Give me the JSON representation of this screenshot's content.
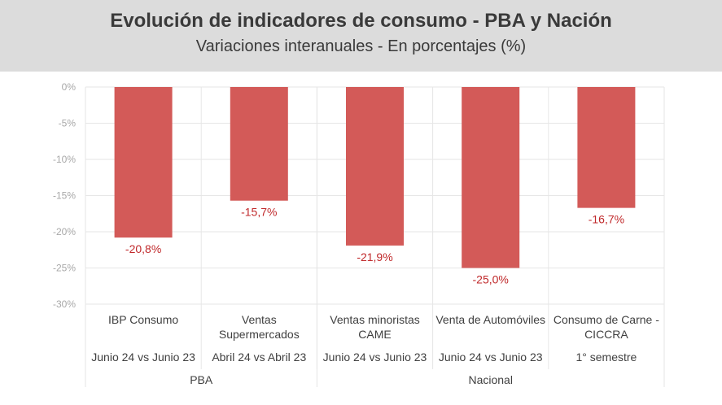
{
  "header": {
    "title": "Evolución de indicadores de consumo - PBA y Nación",
    "subtitle": "Variaciones interanuales - En porcentajes (%)"
  },
  "colors": {
    "bar": "#d35a58",
    "label": "#c0292b",
    "header_bg": "#dcdcdc"
  },
  "chart_data": {
    "type": "bar",
    "title": "Evolución de indicadores de consumo - PBA y Nación",
    "subtitle": "Variaciones interanuales - En porcentajes (%)",
    "categories": [
      [
        "IBP Consumo"
      ],
      [
        "Ventas",
        "Supermercados"
      ],
      [
        "Ventas minoristas",
        "CAME"
      ],
      [
        "Venta de Automóviles"
      ],
      [
        "Consumo de Carne -",
        "CICCRA"
      ]
    ],
    "periods": [
      "Junio 24 vs Junio 23",
      "Abril 24 vs Abril 23",
      "Junio 24 vs Junio 23",
      "Junio 24 vs Junio 23",
      "1° semestre"
    ],
    "groups": [
      {
        "name": "PBA",
        "count": 2
      },
      {
        "name": "Nacional",
        "count": 3
      }
    ],
    "values": [
      -20.8,
      -15.7,
      -21.9,
      -25.0,
      -16.7
    ],
    "data_labels": [
      "-20,8%",
      "-15,7%",
      "-21,9%",
      "-25,0%",
      "-16,7%"
    ],
    "yticks": [
      "0%",
      "-5%",
      "-10%",
      "-15%",
      "-20%",
      "-25%",
      "-30%"
    ],
    "ylim": [
      -30,
      0
    ],
    "ylabel": "",
    "xlabel": "",
    "grid": true
  }
}
